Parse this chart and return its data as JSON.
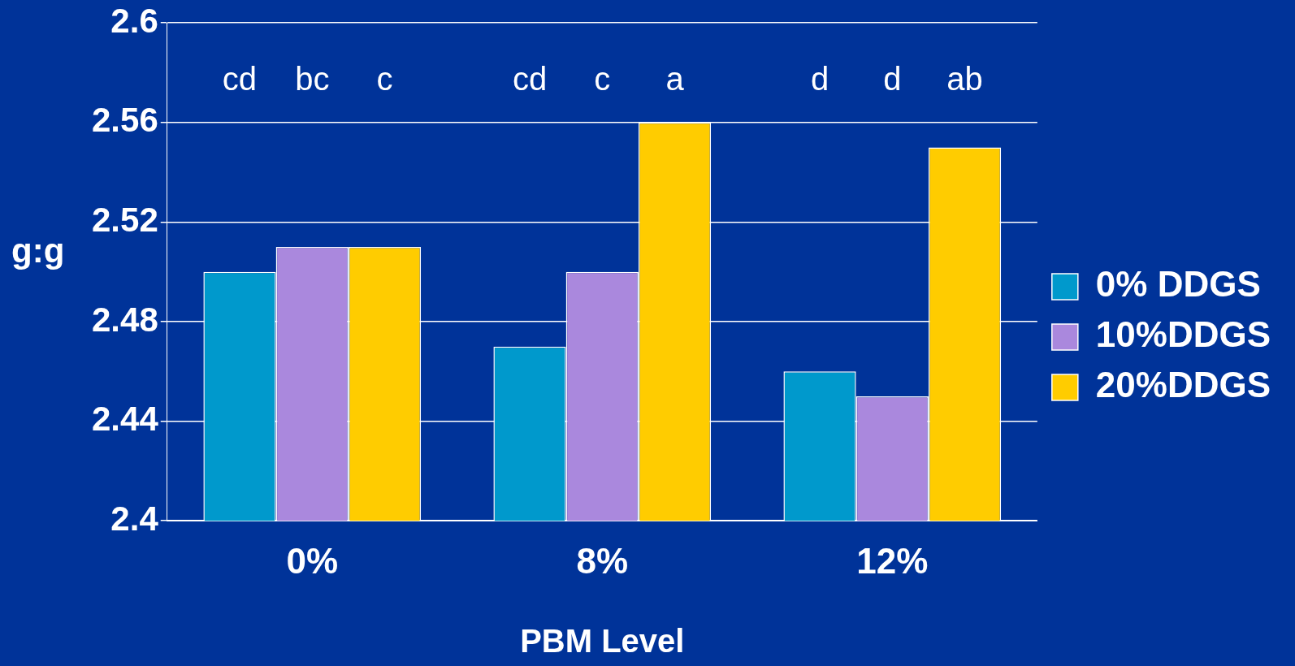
{
  "chart_data": {
    "type": "bar",
    "xlabel": "PBM Level",
    "ylabel": "g:g",
    "categories": [
      "0%",
      "8%",
      "12%"
    ],
    "series": [
      {
        "name": "0% DDGS",
        "color": "#0099cc",
        "values": [
          2.5,
          2.47,
          2.46
        ]
      },
      {
        "name": "10%DDGS",
        "color": "#aa88dd",
        "values": [
          2.51,
          2.5,
          2.45
        ]
      },
      {
        "name": "20%DDGS",
        "color": "#ffcc00",
        "values": [
          2.51,
          2.56,
          2.55
        ]
      }
    ],
    "ylim": [
      2.4,
      2.6
    ],
    "yticks": [
      2.4,
      2.44,
      2.48,
      2.52,
      2.56,
      2.6
    ],
    "grid": "y",
    "legend": "right",
    "annotations": [
      "cd",
      "bc",
      "c",
      "cd",
      "c",
      "a",
      "d",
      "d",
      "ab"
    ]
  }
}
